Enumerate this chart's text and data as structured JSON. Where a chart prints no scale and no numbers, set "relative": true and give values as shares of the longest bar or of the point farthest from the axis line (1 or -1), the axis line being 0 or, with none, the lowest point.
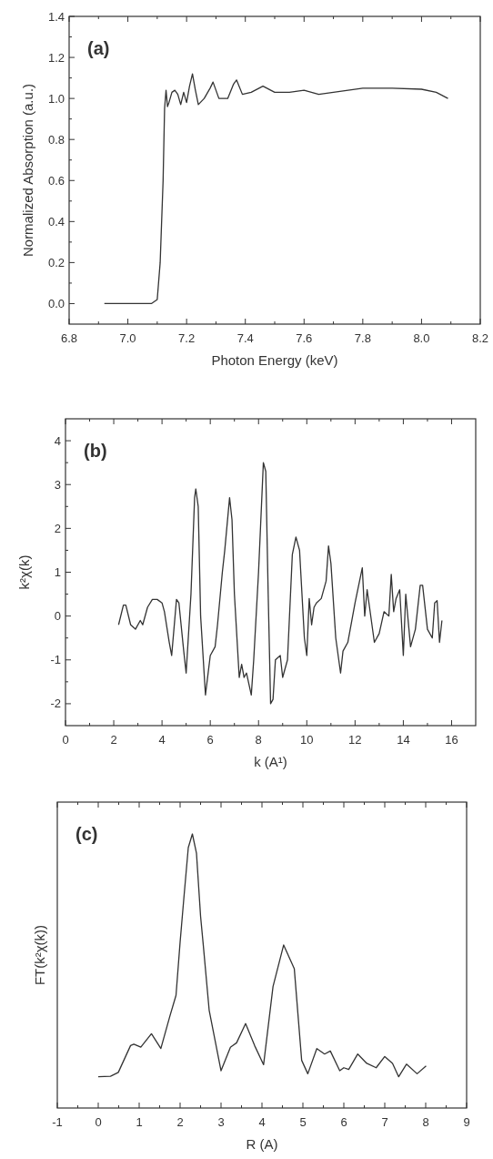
{
  "chart_data": [
    {
      "type": "line",
      "title": "(a)",
      "xlabel": "Photon Energy (keV)",
      "ylabel": "Normalized Absorption (a.u.)",
      "xlim": [
        6.8,
        8.2
      ],
      "ylim": [
        -0.1,
        1.4
      ],
      "xticks": [
        {
          "value": 6.8,
          "label": "6.8"
        },
        {
          "value": 6.9,
          "label": null
        },
        {
          "value": 7.0,
          "label": "7.0"
        },
        {
          "value": 7.1,
          "label": null
        },
        {
          "value": 7.2,
          "label": "7.2"
        },
        {
          "value": 7.3,
          "label": null
        },
        {
          "value": 7.4,
          "label": "7.4"
        },
        {
          "value": 7.5,
          "label": null
        },
        {
          "value": 7.6,
          "label": "7.6"
        },
        {
          "value": 7.7,
          "label": null
        },
        {
          "value": 7.8,
          "label": "7.8"
        },
        {
          "value": 7.9,
          "label": null
        },
        {
          "value": 8.0,
          "label": "8.0"
        },
        {
          "value": 8.1,
          "label": null
        },
        {
          "value": 8.2,
          "label": "8.2"
        }
      ],
      "yticks": [
        {
          "value": 0,
          "label": "0.0"
        },
        {
          "value": 0.1,
          "label": null
        },
        {
          "value": 0.2,
          "label": "0.2"
        },
        {
          "value": 0.3,
          "label": null
        },
        {
          "value": 0.4,
          "label": "0.4"
        },
        {
          "value": 0.5,
          "label": null
        },
        {
          "value": 0.6,
          "label": "0.6"
        },
        {
          "value": 0.7,
          "label": null
        },
        {
          "value": 0.8,
          "label": "0.8"
        },
        {
          "value": 0.9,
          "label": null
        },
        {
          "value": 1.0,
          "label": "1.0"
        },
        {
          "value": 1.1,
          "label": null
        },
        {
          "value": 1.2,
          "label": "1.2"
        },
        {
          "value": 1.3,
          "label": null
        },
        {
          "value": 1.4,
          "label": "1.4"
        }
      ],
      "series": [
        {
          "color": "#333333",
          "x": [
            6.92,
            7.0,
            7.08,
            7.1,
            7.11,
            7.12,
            7.125,
            7.13,
            7.135,
            7.14,
            7.15,
            7.16,
            7.17,
            7.18,
            7.19,
            7.2,
            7.21,
            7.22,
            7.23,
            7.24,
            7.26,
            7.28,
            7.29,
            7.31,
            7.34,
            7.36,
            7.37,
            7.39,
            7.42,
            7.46,
            7.5,
            7.55,
            7.6,
            7.65,
            7.7,
            7.8,
            7.9,
            8.0,
            8.05,
            8.09
          ],
          "values": [
            0.0,
            0.0,
            0.0,
            0.02,
            0.2,
            0.6,
            0.95,
            1.04,
            0.96,
            0.98,
            1.03,
            1.04,
            1.02,
            0.97,
            1.03,
            0.98,
            1.06,
            1.12,
            1.04,
            0.97,
            1.0,
            1.05,
            1.08,
            1.0,
            1.0,
            1.07,
            1.09,
            1.02,
            1.03,
            1.06,
            1.03,
            1.03,
            1.04,
            1.02,
            1.03,
            1.05,
            1.05,
            1.045,
            1.03,
            1.0
          ]
        }
      ]
    },
    {
      "type": "line",
      "title": "(b)",
      "xlabel": "k (A¹)",
      "ylabel": "k²χ(k)",
      "xlim": [
        0,
        17
      ],
      "ylim": [
        -2.5,
        4.5
      ],
      "xticks": [
        0,
        {
          "value": 1,
          "label": null
        },
        2,
        {
          "value": 3,
          "label": null
        },
        4,
        {
          "value": 5,
          "label": null
        },
        6,
        {
          "value": 7,
          "label": null
        },
        8,
        {
          "value": 9,
          "label": null
        },
        10,
        {
          "value": 11,
          "label": null
        },
        12,
        {
          "value": 13,
          "label": null
        },
        14,
        {
          "value": 15,
          "label": null
        },
        16
      ],
      "yticks": [
        -2,
        {
          "value": -1.5,
          "label": null
        },
        -1,
        {
          "value": -0.5,
          "label": null
        },
        0,
        {
          "value": 0.5,
          "label": null
        },
        1,
        {
          "value": 1.5,
          "label": null
        },
        2,
        {
          "value": 2.5,
          "label": null
        },
        3,
        {
          "value": 3.5,
          "label": null
        },
        4
      ],
      "series": [
        {
          "color": "#333333",
          "x": [
            2.2,
            2.4,
            2.5,
            2.7,
            2.9,
            3.1,
            3.2,
            3.4,
            3.6,
            3.8,
            4.0,
            4.1,
            4.3,
            4.4,
            4.6,
            4.7,
            4.9,
            5.0,
            5.2,
            5.35,
            5.4,
            5.5,
            5.6,
            5.8,
            6.0,
            6.2,
            6.3,
            6.5,
            6.6,
            6.8,
            6.9,
            7.0,
            7.2,
            7.3,
            7.4,
            7.5,
            7.7,
            7.8,
            8.0,
            8.2,
            8.3,
            8.4,
            8.5,
            8.6,
            8.7,
            8.9,
            9.0,
            9.2,
            9.4,
            9.55,
            9.7,
            9.9,
            10.0,
            10.1,
            10.2,
            10.3,
            10.4,
            10.6,
            10.8,
            10.9,
            11.0,
            11.2,
            11.4,
            11.5,
            11.7,
            12.0,
            12.3,
            12.4,
            12.5,
            12.8,
            13.0,
            13.2,
            13.4,
            13.5,
            13.6,
            13.7,
            13.85,
            14.0,
            14.1,
            14.3,
            14.5,
            14.7,
            14.8,
            15.0,
            15.2,
            15.3,
            15.4,
            15.5,
            15.6
          ],
          "values": [
            -0.2,
            0.25,
            0.25,
            -0.2,
            -0.3,
            -0.1,
            -0.2,
            0.2,
            0.38,
            0.38,
            0.3,
            0.1,
            -0.6,
            -0.9,
            0.38,
            0.3,
            -0.8,
            -1.3,
            0.5,
            2.7,
            2.9,
            2.5,
            0.0,
            -1.8,
            -0.9,
            -0.7,
            -0.2,
            1.0,
            1.5,
            2.7,
            2.2,
            0.5,
            -1.4,
            -1.1,
            -1.4,
            -1.3,
            -1.8,
            -1.0,
            1.0,
            3.5,
            3.3,
            0.5,
            -2.0,
            -1.9,
            -1.0,
            -0.9,
            -1.4,
            -1.0,
            1.4,
            1.8,
            1.5,
            -0.5,
            -0.9,
            0.4,
            -0.2,
            0.2,
            0.3,
            0.4,
            0.8,
            1.6,
            1.2,
            -0.5,
            -1.3,
            -0.8,
            -0.6,
            0.3,
            1.1,
            0.0,
            0.6,
            -0.6,
            -0.4,
            0.1,
            0.0,
            0.95,
            0.1,
            0.4,
            0.6,
            -0.9,
            0.5,
            -0.7,
            -0.3,
            0.7,
            0.7,
            -0.3,
            -0.5,
            0.3,
            0.35,
            -0.6,
            -0.1
          ]
        }
      ]
    },
    {
      "type": "line",
      "title": "(c)",
      "xlabel": "R (A)",
      "ylabel": "FT(k²χ(k))",
      "xlim": [
        -1,
        9
      ],
      "relative": true,
      "xticks": [
        -1,
        {
          "value": -0.5,
          "label": null
        },
        0,
        {
          "value": 0.5,
          "label": null
        },
        1,
        {
          "value": 1.5,
          "label": null
        },
        2,
        {
          "value": 2.5,
          "label": null
        },
        3,
        {
          "value": 3.5,
          "label": null
        },
        4,
        {
          "value": 4.5,
          "label": null
        },
        5,
        {
          "value": 5.5,
          "label": null
        },
        6,
        {
          "value": 6.5,
          "label": null
        },
        7,
        {
          "value": 7.5,
          "label": null
        },
        8,
        {
          "value": 8.5,
          "label": null
        },
        9
      ],
      "series": [
        {
          "color": "#333333",
          "x": [
            0.0,
            0.3,
            0.49,
            0.79,
            0.87,
            1.04,
            1.3,
            1.53,
            1.75,
            1.9,
            2.0,
            2.1,
            2.2,
            2.3,
            2.4,
            2.5,
            2.56,
            2.71,
            3.0,
            3.23,
            3.38,
            3.6,
            3.82,
            4.04,
            4.27,
            4.53,
            4.79,
            4.97,
            5.12,
            5.34,
            5.53,
            5.67,
            5.9,
            6.0,
            6.12,
            6.34,
            6.56,
            6.79,
            7.0,
            7.19,
            7.34,
            7.53,
            7.79,
            8.01
          ],
          "values": [
            0.114,
            0.116,
            0.13,
            0.228,
            0.233,
            0.222,
            0.271,
            0.217,
            0.335,
            0.411,
            0.605,
            0.78,
            0.95,
            1.0,
            0.93,
            0.7,
            0.605,
            0.357,
            0.136,
            0.222,
            0.238,
            0.308,
            0.228,
            0.158,
            0.443,
            0.595,
            0.508,
            0.174,
            0.125,
            0.217,
            0.197,
            0.208,
            0.136,
            0.147,
            0.141,
            0.197,
            0.163,
            0.147,
            0.188,
            0.163,
            0.114,
            0.16,
            0.125,
            0.154
          ]
        }
      ]
    }
  ]
}
